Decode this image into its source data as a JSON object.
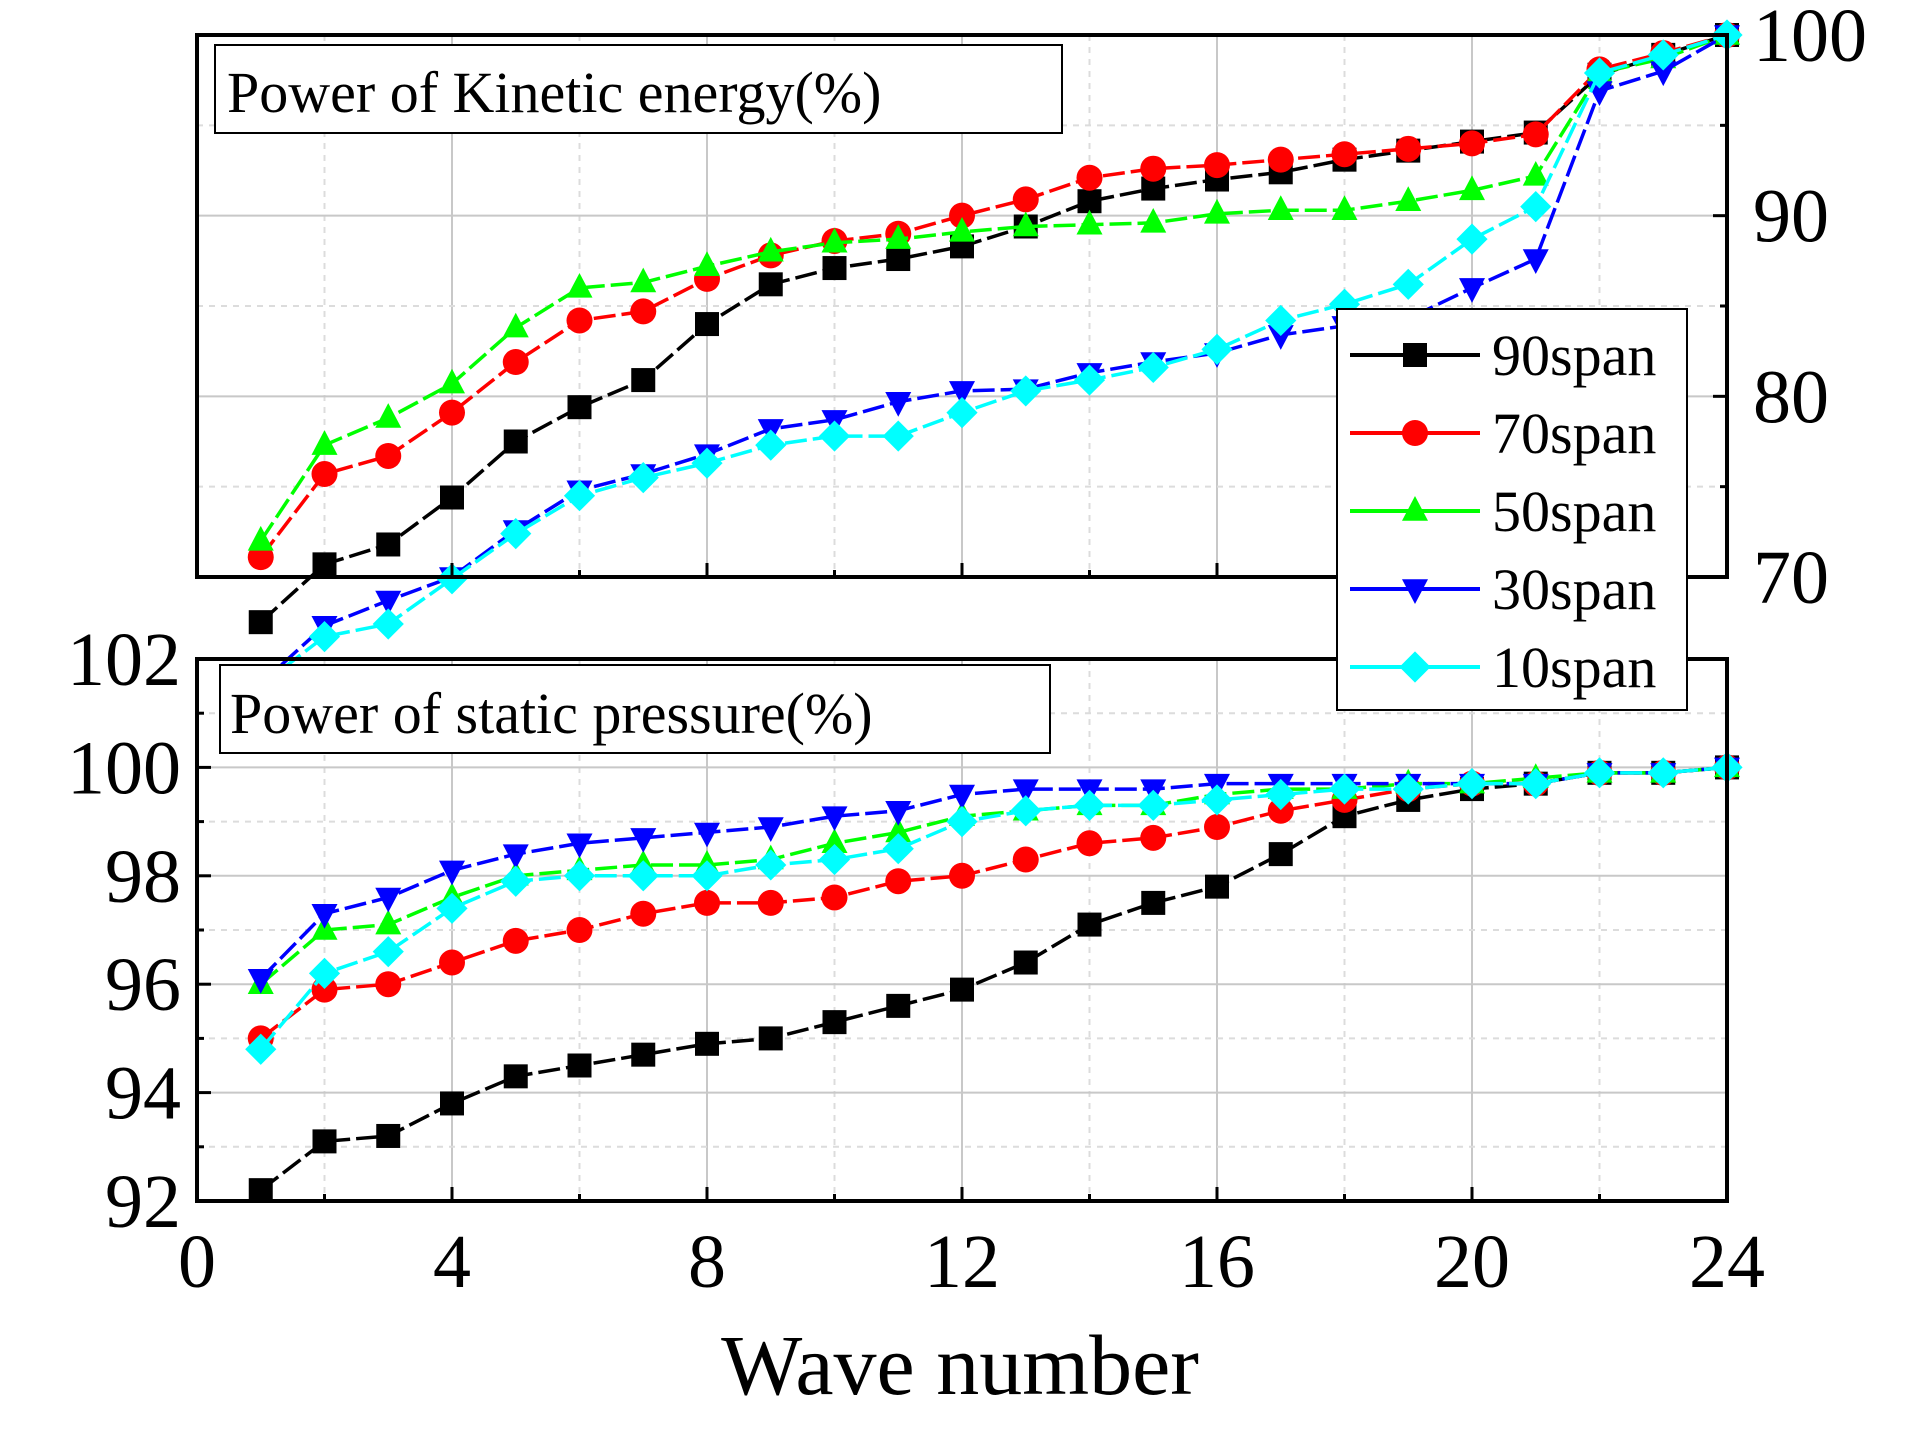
{
  "chart_data": [
    {
      "type": "line",
      "title": "Power of Kinetic energy(%)",
      "xlabel": "Wave number",
      "ylabel": "",
      "y_axis_side": "right",
      "xlim": [
        0,
        24
      ],
      "ylim": [
        70,
        100
      ],
      "x_ticks": [
        0,
        4,
        8,
        12,
        16,
        20,
        24
      ],
      "y_ticks": [
        70,
        80,
        90,
        100
      ],
      "y_tick_labels": [
        "70",
        "80",
        "90",
        "100"
      ],
      "grid": true,
      "x": [
        1,
        2,
        3,
        4,
        5,
        6,
        7,
        8,
        9,
        10,
        11,
        12,
        13,
        14,
        15,
        16,
        17,
        18,
        19,
        20,
        21,
        22,
        23,
        24
      ],
      "series": [
        {
          "name": "90span",
          "color": "#000000",
          "marker": "square",
          "values": [
            67.5,
            70.7,
            71.8,
            74.4,
            77.5,
            79.4,
            80.9,
            84.0,
            86.2,
            87.1,
            87.6,
            88.3,
            89.4,
            90.8,
            91.5,
            92.0,
            92.4,
            93.1,
            93.6,
            94.1,
            94.6,
            97.8,
            98.9,
            100.0
          ]
        },
        {
          "name": "70span",
          "color": "#ff0000",
          "marker": "circle",
          "values": [
            71.1,
            75.7,
            76.7,
            79.1,
            81.9,
            84.2,
            84.7,
            86.5,
            87.8,
            88.6,
            89.0,
            90.0,
            90.9,
            92.1,
            92.6,
            92.8,
            93.1,
            93.4,
            93.7,
            94.0,
            94.5,
            98.1,
            99.0,
            100.0
          ]
        },
        {
          "name": "50span",
          "color": "#00ff00",
          "marker": "triangle-up",
          "values": [
            72.0,
            77.3,
            78.8,
            80.7,
            83.8,
            86.0,
            86.3,
            87.2,
            88.0,
            88.5,
            88.7,
            89.1,
            89.4,
            89.5,
            89.6,
            90.1,
            90.3,
            90.3,
            90.8,
            91.4,
            92.2,
            97.9,
            98.7,
            100.0
          ]
        },
        {
          "name": "30span",
          "color": "#0000ff",
          "marker": "triangle-down",
          "values": [
            64.1,
            67.3,
            68.7,
            70.0,
            72.6,
            74.8,
            75.7,
            76.8,
            78.2,
            78.7,
            79.7,
            80.3,
            80.4,
            81.3,
            81.9,
            82.4,
            83.4,
            83.9,
            84.3,
            86.0,
            87.6,
            96.9,
            98.0,
            100.0
          ]
        },
        {
          "name": "10span",
          "color": "#00ffff",
          "marker": "diamond",
          "values": [
            64.0,
            66.7,
            67.4,
            69.9,
            72.4,
            74.5,
            75.5,
            76.3,
            77.3,
            77.8,
            77.8,
            79.1,
            80.3,
            80.9,
            81.6,
            82.6,
            84.2,
            85.1,
            86.2,
            88.7,
            90.5,
            97.9,
            98.9,
            100.0
          ]
        }
      ]
    },
    {
      "type": "line",
      "title": "Power of static pressure(%)",
      "xlabel": "Wave number",
      "ylabel": "",
      "y_axis_side": "left",
      "xlim": [
        0,
        24
      ],
      "ylim": [
        92,
        102
      ],
      "x_ticks": [
        0,
        4,
        8,
        12,
        16,
        20,
        24
      ],
      "x_tick_labels": [
        "0",
        "4",
        "8",
        "12",
        "16",
        "20",
        "24"
      ],
      "y_ticks": [
        92,
        94,
        96,
        98,
        100,
        102
      ],
      "y_tick_labels": [
        "92",
        "94",
        "96",
        "98",
        "100",
        "102"
      ],
      "grid": true,
      "x": [
        1,
        2,
        3,
        4,
        5,
        6,
        7,
        8,
        9,
        10,
        11,
        12,
        13,
        14,
        15,
        16,
        17,
        18,
        19,
        20,
        21,
        22,
        23,
        24
      ],
      "series": [
        {
          "name": "90span",
          "color": "#000000",
          "marker": "square",
          "values": [
            92.2,
            93.1,
            93.2,
            93.8,
            94.3,
            94.5,
            94.7,
            94.9,
            95.0,
            95.3,
            95.6,
            95.9,
            96.4,
            97.1,
            97.5,
            97.8,
            98.4,
            99.1,
            99.4,
            99.6,
            99.7,
            99.9,
            99.9,
            100.0
          ]
        },
        {
          "name": "70span",
          "color": "#ff0000",
          "marker": "circle",
          "values": [
            95.0,
            95.9,
            96.0,
            96.4,
            96.8,
            97.0,
            97.3,
            97.5,
            97.5,
            97.6,
            97.9,
            98.0,
            98.3,
            98.6,
            98.7,
            98.9,
            99.2,
            99.4,
            99.6,
            99.7,
            99.7,
            99.9,
            99.9,
            100.0
          ]
        },
        {
          "name": "50span",
          "color": "#00ff00",
          "marker": "triangle-up",
          "values": [
            96.0,
            97.0,
            97.1,
            97.6,
            98.0,
            98.1,
            98.2,
            98.2,
            98.3,
            98.6,
            98.8,
            99.1,
            99.2,
            99.3,
            99.3,
            99.5,
            99.6,
            99.6,
            99.7,
            99.7,
            99.8,
            99.9,
            99.9,
            100.0
          ]
        },
        {
          "name": "30span",
          "color": "#0000ff",
          "marker": "triangle-down",
          "values": [
            96.1,
            97.3,
            97.6,
            98.1,
            98.4,
            98.6,
            98.7,
            98.8,
            98.9,
            99.1,
            99.2,
            99.5,
            99.6,
            99.6,
            99.6,
            99.7,
            99.7,
            99.7,
            99.7,
            99.7,
            99.7,
            99.9,
            99.9,
            100.0
          ]
        },
        {
          "name": "10span",
          "color": "#00ffff",
          "marker": "diamond",
          "values": [
            94.8,
            96.2,
            96.6,
            97.4,
            97.9,
            98.0,
            98.0,
            98.0,
            98.2,
            98.3,
            98.5,
            99.0,
            99.2,
            99.3,
            99.3,
            99.4,
            99.5,
            99.6,
            99.6,
            99.7,
            99.7,
            99.9,
            99.9,
            100.0
          ]
        }
      ]
    }
  ],
  "legend": {
    "placement": "right",
    "entries": [
      "90span",
      "70span",
      "50span",
      "30span",
      "10span"
    ]
  }
}
